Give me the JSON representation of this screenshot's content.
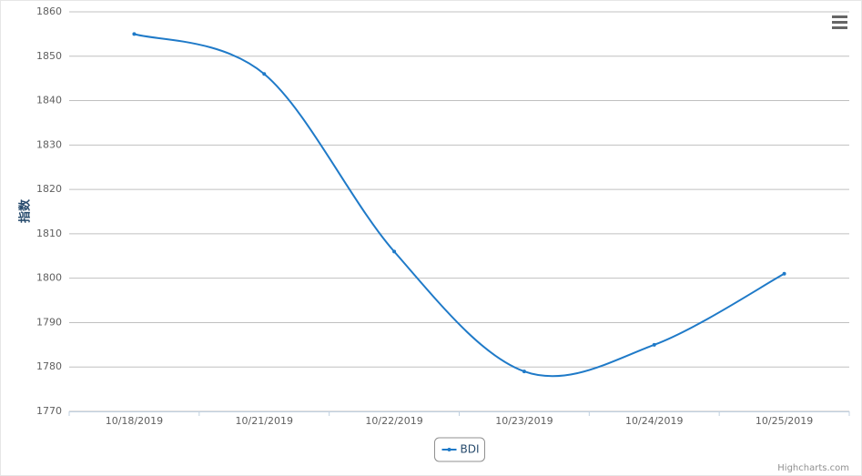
{
  "chart_data": {
    "type": "spline",
    "categories": [
      "10/18/2019",
      "10/21/2019",
      "10/22/2019",
      "10/23/2019",
      "10/24/2019",
      "10/25/2019"
    ],
    "series": [
      {
        "name": "BDI",
        "color": "#1f7ac8",
        "values": [
          1855,
          1846,
          1806,
          1779,
          1785,
          1801
        ]
      }
    ],
    "y_axis_title": "指数",
    "ylim": [
      1770,
      1860
    ],
    "yticks": [
      1770,
      1780,
      1790,
      1800,
      1810,
      1820,
      1830,
      1840,
      1850,
      1860
    ],
    "grid": true,
    "legend": "bottom",
    "credits": "Highcharts.com"
  }
}
